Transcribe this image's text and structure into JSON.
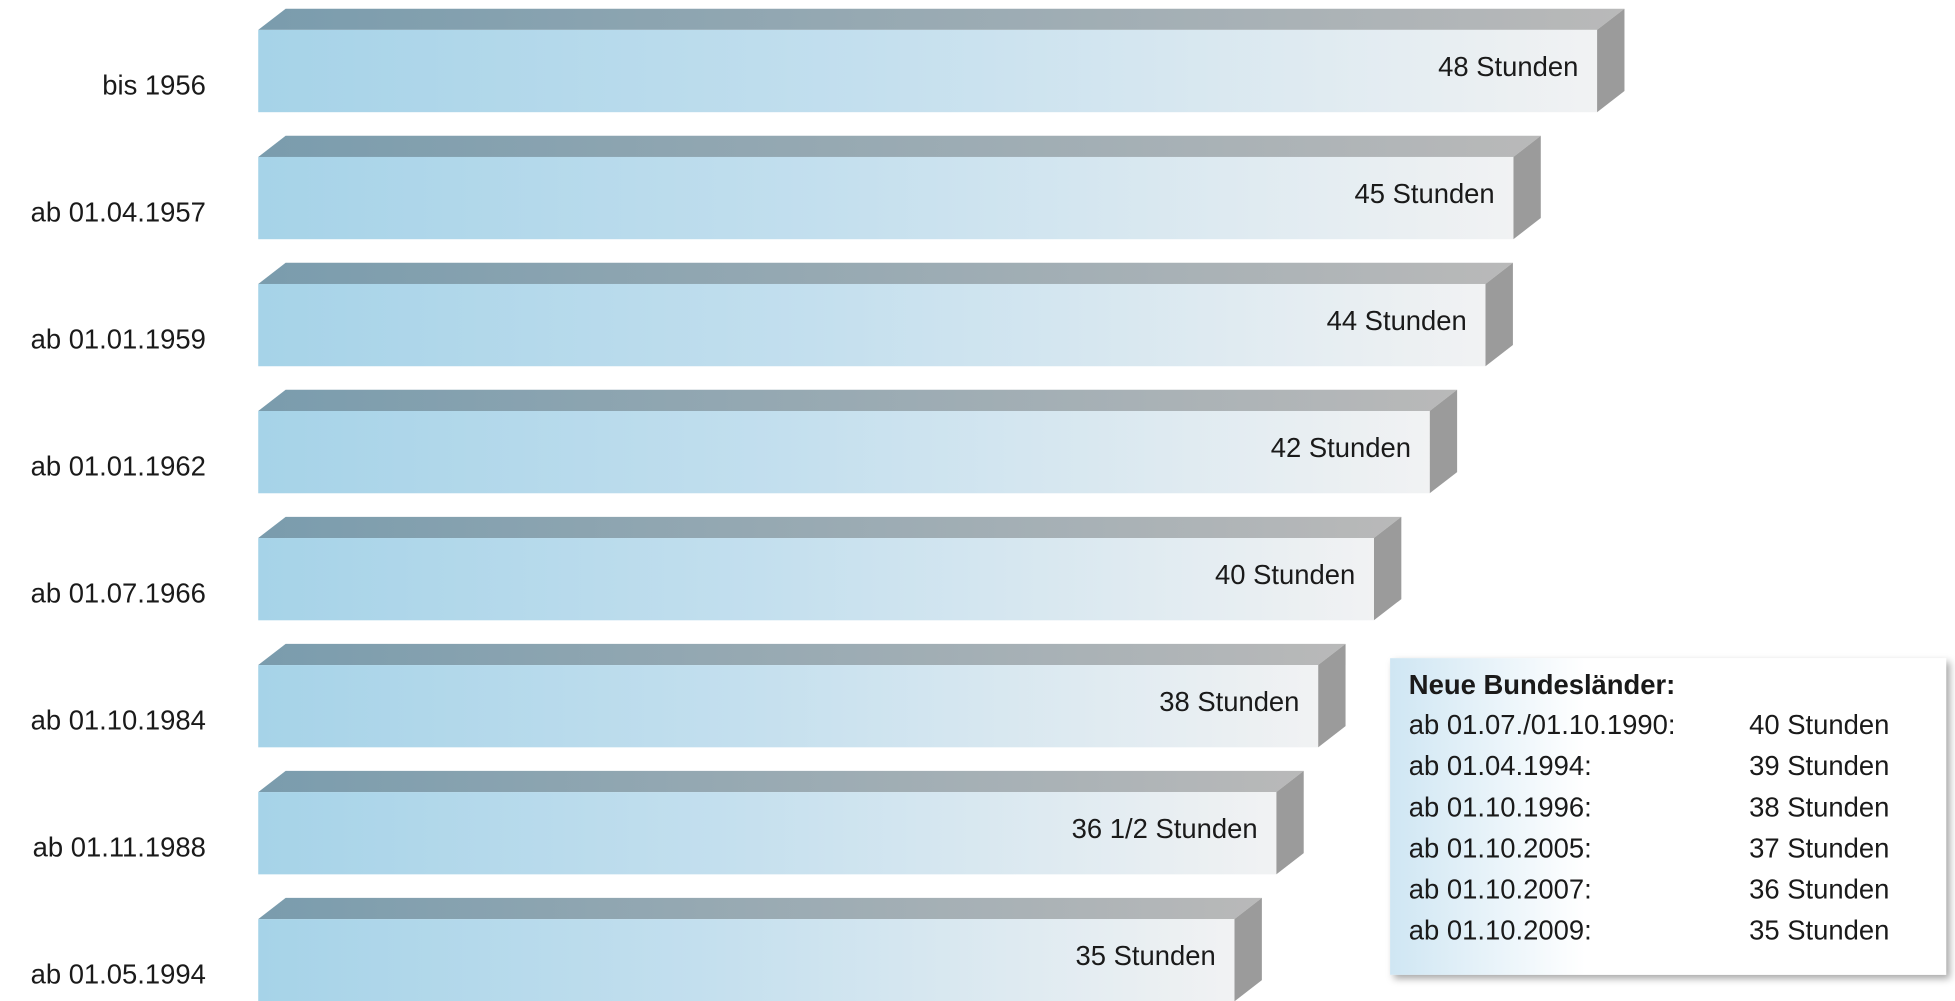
{
  "chart_data": {
    "type": "bar",
    "orientation": "horizontal",
    "categories": [
      "bis 1956",
      "ab 01.04.1957",
      "ab 01.01.1959",
      "ab 01.01.1962",
      "ab 01.07.1966",
      "ab 01.10.1984",
      "ab 01.11.1988",
      "ab 01.05.1994"
    ],
    "values": [
      48,
      45,
      44,
      42,
      40,
      38,
      36.5,
      35
    ],
    "value_labels": [
      "48 Stunden",
      "45 Stunden",
      "44 Stunden",
      "42 Stunden",
      "40 Stunden",
      "38 Stunden",
      "36 1/2 Stunden",
      "35 Stunden"
    ],
    "xlim": [
      0,
      48
    ],
    "color": "#a6d3e8",
    "annotation": {
      "title": "Neue Bundesländer:",
      "rows": [
        [
          "ab 01.07./01.10.1990:",
          "40 Stunden"
        ],
        [
          "ab 01.04.1994:",
          "39 Stunden"
        ],
        [
          "ab 01.10.1996:",
          "38 Stunden"
        ],
        [
          "ab 01.10.2005:",
          "37 Stunden"
        ],
        [
          "ab 01.10.2007:",
          "36 Stunden"
        ],
        [
          "ab 01.10.2009:",
          "35 Stunden"
        ]
      ]
    }
  }
}
